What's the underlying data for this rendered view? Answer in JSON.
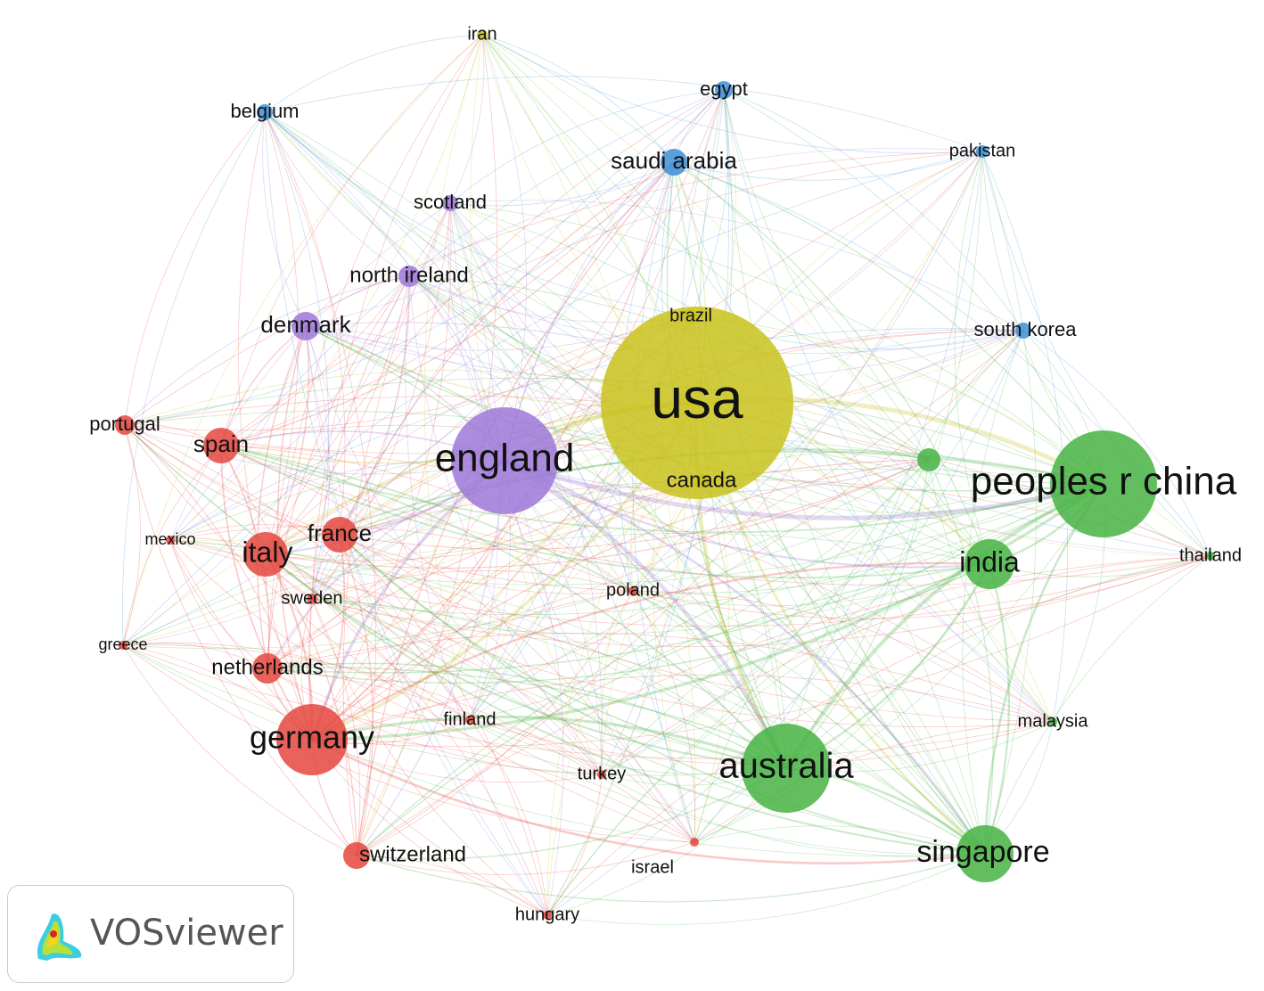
{
  "nodes": [
    {
      "label": "usa"
    },
    {
      "label": "england"
    },
    {
      "label": "peoples r china"
    },
    {
      "label": "australia"
    },
    {
      "label": "germany"
    },
    {
      "label": "singapore"
    },
    {
      "label": "india"
    },
    {
      "label": "italy"
    },
    {
      "label": "spain"
    },
    {
      "label": "france"
    },
    {
      "label": "netherlands"
    },
    {
      "label": "switzerland"
    },
    {
      "label": "denmark"
    },
    {
      "label": "saudi arabia"
    },
    {
      "label": "north ireland"
    },
    {
      "label": "scotland"
    },
    {
      "label": "belgium"
    },
    {
      "label": "egypt"
    },
    {
      "label": "pakistan"
    },
    {
      "label": "south korea"
    },
    {
      "label": "iran"
    },
    {
      "label": "brazil"
    },
    {
      "label": "canada"
    },
    {
      "label": "portugal"
    },
    {
      "label": "mexico"
    },
    {
      "label": "greece"
    },
    {
      "label": "sweden"
    },
    {
      "label": "finland"
    },
    {
      "label": "poland"
    },
    {
      "label": "turkey"
    },
    {
      "label": "israel"
    },
    {
      "label": "hungary"
    },
    {
      "label": "malaysia"
    },
    {
      "label": "thailand"
    }
  ],
  "logo": "VOSviewer"
}
